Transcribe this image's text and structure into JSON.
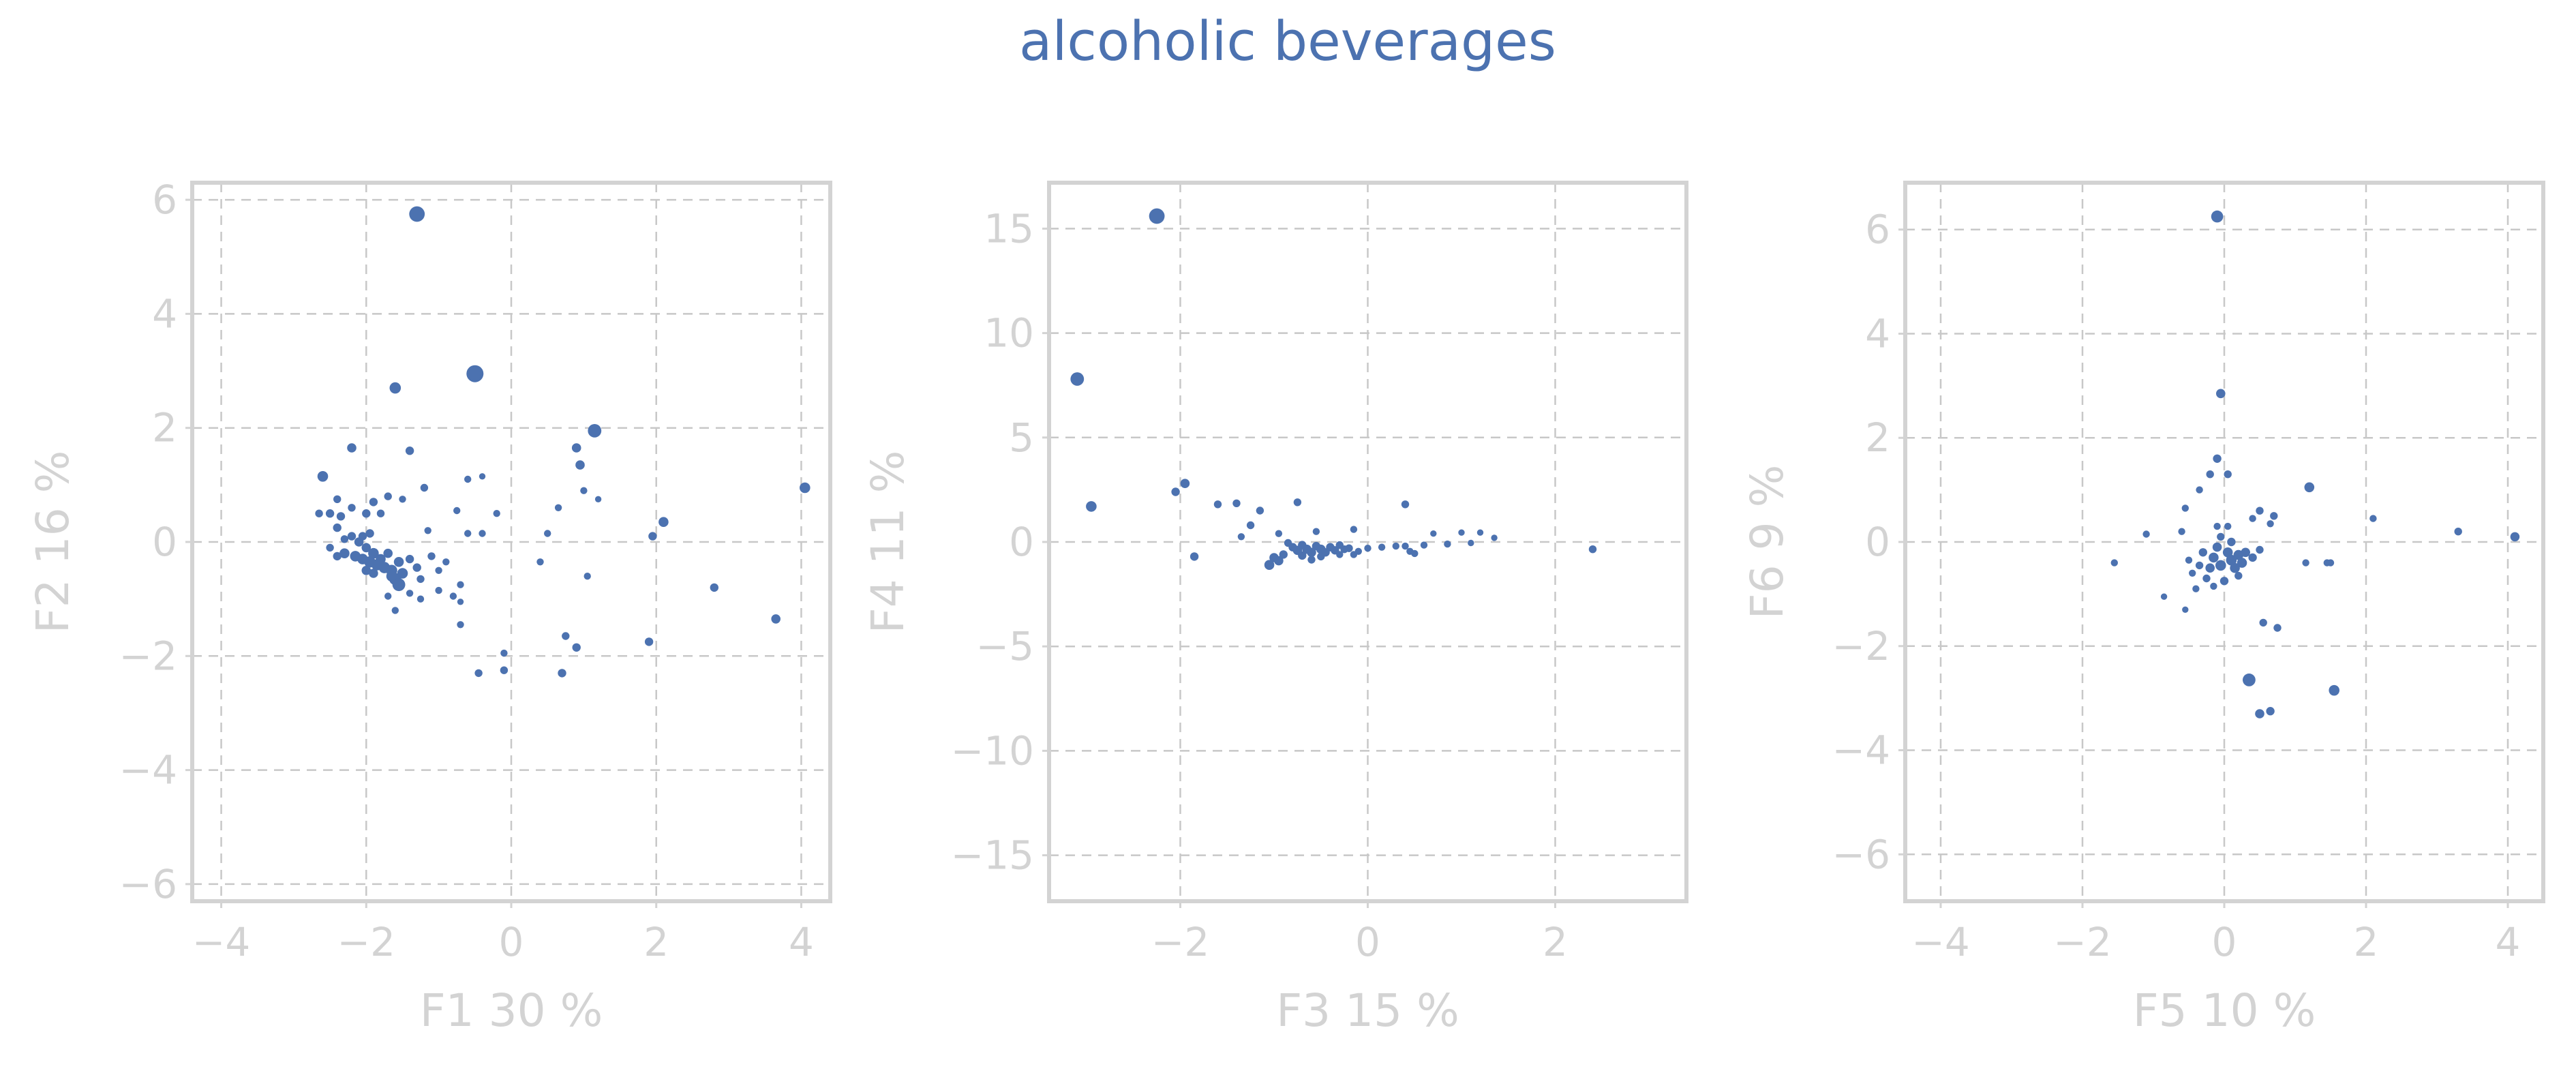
{
  "title": "alcoholic beverages",
  "colors": {
    "points": "#4c72b0",
    "title": "#4c72b0",
    "axis_text": "#d3d3d3",
    "frame": "#d3d3d3",
    "grid": "#c8c8c8"
  },
  "chart_data": [
    {
      "type": "scatter",
      "xlabel": "F1 30 %",
      "ylabel": "F2 16 %",
      "xlim": [
        -4.4,
        4.4
      ],
      "ylim": [
        -6.3,
        6.3
      ],
      "xticks": [
        -4,
        -2,
        0,
        2,
        4
      ],
      "yticks": [
        -6,
        -4,
        -2,
        0,
        2,
        4,
        6
      ],
      "xtick_labels": [
        "−4",
        "−2",
        "0",
        "2",
        "4"
      ],
      "ytick_labels": [
        "−6",
        "−4",
        "−2",
        "0",
        "2",
        "4",
        "6"
      ],
      "grid": true,
      "points": [
        {
          "x": -1.3,
          "y": 5.75,
          "s": 2.2
        },
        {
          "x": -0.5,
          "y": 2.95,
          "s": 2.4
        },
        {
          "x": -1.6,
          "y": 2.7,
          "s": 1.6
        },
        {
          "x": 1.15,
          "y": 1.95,
          "s": 1.9
        },
        {
          "x": -2.2,
          "y": 1.65,
          "s": 1.3
        },
        {
          "x": -1.4,
          "y": 1.6,
          "s": 1.2
        },
        {
          "x": 0.9,
          "y": 1.65,
          "s": 1.3
        },
        {
          "x": 0.95,
          "y": 1.35,
          "s": 1.3
        },
        {
          "x": -2.6,
          "y": 1.15,
          "s": 1.5
        },
        {
          "x": -0.6,
          "y": 1.1,
          "s": 1.0
        },
        {
          "x": -0.4,
          "y": 1.15,
          "s": 0.9
        },
        {
          "x": -1.2,
          "y": 0.95,
          "s": 1.1
        },
        {
          "x": 1.0,
          "y": 0.9,
          "s": 1.0
        },
        {
          "x": 1.2,
          "y": 0.75,
          "s": 0.9
        },
        {
          "x": 0.65,
          "y": 0.6,
          "s": 1.0
        },
        {
          "x": -2.4,
          "y": 0.75,
          "s": 1.1
        },
        {
          "x": -2.2,
          "y": 0.6,
          "s": 1.1
        },
        {
          "x": -1.9,
          "y": 0.7,
          "s": 1.2
        },
        {
          "x": -1.7,
          "y": 0.8,
          "s": 1.1
        },
        {
          "x": -1.5,
          "y": 0.75,
          "s": 1.0
        },
        {
          "x": -2.5,
          "y": 0.5,
          "s": 1.2
        },
        {
          "x": -2.65,
          "y": 0.5,
          "s": 1.1
        },
        {
          "x": -2.35,
          "y": 0.45,
          "s": 1.2
        },
        {
          "x": -2.0,
          "y": 0.5,
          "s": 1.2
        },
        {
          "x": -1.8,
          "y": 0.5,
          "s": 1.1
        },
        {
          "x": -0.2,
          "y": 0.5,
          "s": 1.0
        },
        {
          "x": -0.75,
          "y": 0.55,
          "s": 1.0
        },
        {
          "x": -1.15,
          "y": 0.2,
          "s": 1.0
        },
        {
          "x": -0.6,
          "y": 0.15,
          "s": 1.0
        },
        {
          "x": -0.4,
          "y": 0.15,
          "s": 1.0
        },
        {
          "x": 0.5,
          "y": 0.15,
          "s": 1.0
        },
        {
          "x": 1.95,
          "y": 0.1,
          "s": 1.2
        },
        {
          "x": 2.1,
          "y": 0.35,
          "s": 1.4
        },
        {
          "x": 4.05,
          "y": 0.95,
          "s": 1.5
        },
        {
          "x": -2.4,
          "y": 0.25,
          "s": 1.2
        },
        {
          "x": -2.2,
          "y": 0.1,
          "s": 1.2
        },
        {
          "x": -2.1,
          "y": 0.0,
          "s": 1.3
        },
        {
          "x": -2.0,
          "y": -0.1,
          "s": 1.3
        },
        {
          "x": -1.9,
          "y": -0.2,
          "s": 1.5
        },
        {
          "x": -2.3,
          "y": -0.2,
          "s": 1.4
        },
        {
          "x": -2.15,
          "y": -0.25,
          "s": 1.5
        },
        {
          "x": -2.05,
          "y": -0.3,
          "s": 1.5
        },
        {
          "x": -1.95,
          "y": -0.35,
          "s": 1.6
        },
        {
          "x": -1.85,
          "y": -0.4,
          "s": 1.6
        },
        {
          "x": -1.75,
          "y": -0.45,
          "s": 1.6
        },
        {
          "x": -1.65,
          "y": -0.5,
          "s": 1.6
        },
        {
          "x": -1.8,
          "y": -0.3,
          "s": 1.4
        },
        {
          "x": -1.7,
          "y": -0.2,
          "s": 1.3
        },
        {
          "x": -1.55,
          "y": -0.35,
          "s": 1.4
        },
        {
          "x": -1.5,
          "y": -0.55,
          "s": 1.5
        },
        {
          "x": -1.6,
          "y": -0.65,
          "s": 1.7
        },
        {
          "x": -1.55,
          "y": -0.75,
          "s": 1.8
        },
        {
          "x": -1.65,
          "y": -0.6,
          "s": 1.5
        },
        {
          "x": -1.9,
          "y": -0.55,
          "s": 1.3
        },
        {
          "x": -2.0,
          "y": -0.5,
          "s": 1.3
        },
        {
          "x": -1.4,
          "y": -0.3,
          "s": 1.2
        },
        {
          "x": -1.3,
          "y": -0.45,
          "s": 1.2
        },
        {
          "x": -1.25,
          "y": -0.65,
          "s": 1.1
        },
        {
          "x": -1.1,
          "y": -0.25,
          "s": 1.1
        },
        {
          "x": -1.0,
          "y": -0.5,
          "s": 1.0
        },
        {
          "x": -0.9,
          "y": -0.35,
          "s": 1.0
        },
        {
          "x": -1.4,
          "y": -0.9,
          "s": 1.0
        },
        {
          "x": -1.25,
          "y": -1.0,
          "s": 1.0
        },
        {
          "x": -1.0,
          "y": -0.85,
          "s": 1.0
        },
        {
          "x": -0.8,
          "y": -0.95,
          "s": 1.0
        },
        {
          "x": -0.7,
          "y": -0.75,
          "s": 1.0
        },
        {
          "x": -0.7,
          "y": -1.05,
          "s": 0.9
        },
        {
          "x": -1.6,
          "y": -1.2,
          "s": 1.0
        },
        {
          "x": -1.7,
          "y": -0.95,
          "s": 1.0
        },
        {
          "x": -0.7,
          "y": -1.45,
          "s": 1.0
        },
        {
          "x": -2.5,
          "y": -0.1,
          "s": 1.1
        },
        {
          "x": -2.3,
          "y": 0.05,
          "s": 1.1
        },
        {
          "x": -2.4,
          "y": -0.25,
          "s": 1.2
        },
        {
          "x": 0.4,
          "y": -0.35,
          "s": 1.0
        },
        {
          "x": 1.05,
          "y": -0.6,
          "s": 1.0
        },
        {
          "x": 2.8,
          "y": -0.8,
          "s": 1.2
        },
        {
          "x": 3.65,
          "y": -1.35,
          "s": 1.3
        },
        {
          "x": 1.9,
          "y": -1.75,
          "s": 1.2
        },
        {
          "x": 0.75,
          "y": -1.65,
          "s": 1.1
        },
        {
          "x": 0.9,
          "y": -1.85,
          "s": 1.2
        },
        {
          "x": -0.1,
          "y": -1.95,
          "s": 1.0
        },
        {
          "x": -0.1,
          "y": -2.25,
          "s": 1.1
        },
        {
          "x": -0.45,
          "y": -2.3,
          "s": 1.1
        },
        {
          "x": 0.7,
          "y": -2.3,
          "s": 1.2
        },
        {
          "x": -1.95,
          "y": 0.15,
          "s": 1.2
        },
        {
          "x": -2.05,
          "y": 0.1,
          "s": 1.2
        }
      ]
    },
    {
      "type": "scatter",
      "xlabel": "F3 15 %",
      "ylabel": "F4 11 %",
      "xlim": [
        -3.4,
        3.4
      ],
      "ylim": [
        -17.2,
        17.2
      ],
      "xticks": [
        -2,
        0,
        2
      ],
      "yticks": [
        -15,
        -10,
        -5,
        0,
        5,
        10,
        15
      ],
      "xtick_labels": [
        "−2",
        "0",
        "2"
      ],
      "ytick_labels": [
        "−15",
        "−10",
        "−5",
        "0",
        "5",
        "10",
        "15"
      ],
      "grid": true,
      "points": [
        {
          "x": -2.25,
          "y": 15.6,
          "s": 2.2
        },
        {
          "x": -3.1,
          "y": 7.8,
          "s": 1.9
        },
        {
          "x": -2.95,
          "y": 1.7,
          "s": 1.5
        },
        {
          "x": -1.95,
          "y": 2.8,
          "s": 1.3
        },
        {
          "x": -2.05,
          "y": 2.4,
          "s": 1.2
        },
        {
          "x": -1.6,
          "y": 1.8,
          "s": 1.1
        },
        {
          "x": -1.4,
          "y": 1.85,
          "s": 1.1
        },
        {
          "x": -1.15,
          "y": 1.5,
          "s": 1.1
        },
        {
          "x": -0.75,
          "y": 1.9,
          "s": 1.1
        },
        {
          "x": 0.4,
          "y": 1.8,
          "s": 1.1
        },
        {
          "x": -1.25,
          "y": 0.8,
          "s": 1.1
        },
        {
          "x": -1.35,
          "y": 0.25,
          "s": 1.0
        },
        {
          "x": -1.85,
          "y": -0.7,
          "s": 1.2
        },
        {
          "x": -0.95,
          "y": 0.4,
          "s": 1.0
        },
        {
          "x": -0.15,
          "y": 0.6,
          "s": 1.0
        },
        {
          "x": -0.55,
          "y": 0.5,
          "s": 1.0
        },
        {
          "x": 0.7,
          "y": 0.4,
          "s": 0.9
        },
        {
          "x": 1.0,
          "y": 0.45,
          "s": 0.9
        },
        {
          "x": 1.2,
          "y": 0.45,
          "s": 0.9
        },
        {
          "x": 1.35,
          "y": 0.2,
          "s": 0.9
        },
        {
          "x": -0.85,
          "y": -0.05,
          "s": 1.1
        },
        {
          "x": -0.8,
          "y": -0.25,
          "s": 1.2
        },
        {
          "x": -0.75,
          "y": -0.4,
          "s": 1.3
        },
        {
          "x": -0.7,
          "y": -0.15,
          "s": 1.2
        },
        {
          "x": -0.65,
          "y": -0.35,
          "s": 1.3
        },
        {
          "x": -0.6,
          "y": -0.5,
          "s": 1.3
        },
        {
          "x": -0.55,
          "y": -0.2,
          "s": 1.2
        },
        {
          "x": -0.5,
          "y": -0.35,
          "s": 1.3
        },
        {
          "x": -0.45,
          "y": -0.5,
          "s": 1.2
        },
        {
          "x": -0.4,
          "y": -0.25,
          "s": 1.2
        },
        {
          "x": -0.35,
          "y": -0.4,
          "s": 1.2
        },
        {
          "x": -0.3,
          "y": -0.15,
          "s": 1.1
        },
        {
          "x": -0.25,
          "y": -0.35,
          "s": 1.1
        },
        {
          "x": -0.9,
          "y": -0.6,
          "s": 1.2
        },
        {
          "x": -1.0,
          "y": -0.75,
          "s": 1.3
        },
        {
          "x": -1.05,
          "y": -1.1,
          "s": 1.4
        },
        {
          "x": -0.95,
          "y": -0.9,
          "s": 1.3
        },
        {
          "x": -0.7,
          "y": -0.65,
          "s": 1.2
        },
        {
          "x": -0.6,
          "y": -0.85,
          "s": 1.1
        },
        {
          "x": -0.5,
          "y": -0.7,
          "s": 1.1
        },
        {
          "x": -0.2,
          "y": -0.3,
          "s": 1.1
        },
        {
          "x": -0.1,
          "y": -0.45,
          "s": 1.0
        },
        {
          "x": 0.0,
          "y": -0.3,
          "s": 1.0
        },
        {
          "x": 0.15,
          "y": -0.25,
          "s": 1.0
        },
        {
          "x": 0.3,
          "y": -0.2,
          "s": 1.0
        },
        {
          "x": 0.45,
          "y": -0.45,
          "s": 1.0
        },
        {
          "x": 0.4,
          "y": -0.2,
          "s": 1.0
        },
        {
          "x": 0.6,
          "y": -0.15,
          "s": 1.0
        },
        {
          "x": 0.85,
          "y": -0.1,
          "s": 1.0
        },
        {
          "x": 1.1,
          "y": -0.05,
          "s": 0.9
        },
        {
          "x": 2.4,
          "y": -0.35,
          "s": 1.1
        },
        {
          "x": -0.3,
          "y": -0.6,
          "s": 1.0
        },
        {
          "x": -0.15,
          "y": -0.6,
          "s": 1.0
        },
        {
          "x": 0.5,
          "y": -0.55,
          "s": 1.0
        }
      ]
    },
    {
      "type": "scatter",
      "xlabel": "F5 10 %",
      "ylabel": "F6 9 %",
      "xlim": [
        -4.5,
        4.5
      ],
      "ylim": [
        -6.9,
        6.9
      ],
      "xticks": [
        -4,
        -2,
        0,
        2,
        4
      ],
      "yticks": [
        -6,
        -4,
        -2,
        0,
        2,
        4,
        6
      ],
      "xtick_labels": [
        "−4",
        "−2",
        "0",
        "2",
        "4"
      ],
      "ytick_labels": [
        "−6",
        "−4",
        "−2",
        "0",
        "2",
        "4",
        "6"
      ],
      "grid": true,
      "points": [
        {
          "x": -0.1,
          "y": 6.25,
          "s": 1.7
        },
        {
          "x": -0.05,
          "y": 2.85,
          "s": 1.3
        },
        {
          "x": -0.1,
          "y": 1.6,
          "s": 1.2
        },
        {
          "x": -0.2,
          "y": 1.3,
          "s": 1.1
        },
        {
          "x": 0.05,
          "y": 1.3,
          "s": 1.1
        },
        {
          "x": -0.35,
          "y": 1.0,
          "s": 1.0
        },
        {
          "x": 1.2,
          "y": 1.05,
          "s": 1.4
        },
        {
          "x": 2.1,
          "y": 0.45,
          "s": 1.0
        },
        {
          "x": 3.3,
          "y": 0.2,
          "s": 1.1
        },
        {
          "x": 4.1,
          "y": 0.1,
          "s": 1.3
        },
        {
          "x": -0.55,
          "y": 0.65,
          "s": 1.0
        },
        {
          "x": 0.5,
          "y": 0.6,
          "s": 1.1
        },
        {
          "x": 0.7,
          "y": 0.5,
          "s": 1.1
        },
        {
          "x": 0.65,
          "y": 0.35,
          "s": 1.0
        },
        {
          "x": 0.4,
          "y": 0.45,
          "s": 1.0
        },
        {
          "x": -0.6,
          "y": 0.2,
          "s": 1.0
        },
        {
          "x": -1.1,
          "y": 0.15,
          "s": 1.0
        },
        {
          "x": -0.1,
          "y": 0.3,
          "s": 1.0
        },
        {
          "x": 0.05,
          "y": 0.3,
          "s": 1.0
        },
        {
          "x": -0.05,
          "y": 0.1,
          "s": 1.1
        },
        {
          "x": 0.1,
          "y": 0.0,
          "s": 1.2
        },
        {
          "x": -0.1,
          "y": -0.1,
          "s": 1.3
        },
        {
          "x": 0.05,
          "y": -0.2,
          "s": 1.4
        },
        {
          "x": 0.2,
          "y": -0.25,
          "s": 1.4
        },
        {
          "x": -0.15,
          "y": -0.3,
          "s": 1.4
        },
        {
          "x": 0.1,
          "y": -0.35,
          "s": 1.5
        },
        {
          "x": 0.25,
          "y": -0.4,
          "s": 1.4
        },
        {
          "x": -0.05,
          "y": -0.45,
          "s": 1.5
        },
        {
          "x": 0.15,
          "y": -0.5,
          "s": 1.4
        },
        {
          "x": -0.2,
          "y": -0.5,
          "s": 1.3
        },
        {
          "x": 0.3,
          "y": -0.2,
          "s": 1.3
        },
        {
          "x": 0.4,
          "y": -0.3,
          "s": 1.2
        },
        {
          "x": 0.5,
          "y": -0.15,
          "s": 1.1
        },
        {
          "x": -0.3,
          "y": -0.2,
          "s": 1.2
        },
        {
          "x": -0.35,
          "y": -0.45,
          "s": 1.1
        },
        {
          "x": -0.45,
          "y": -0.6,
          "s": 1.0
        },
        {
          "x": -0.25,
          "y": -0.7,
          "s": 1.1
        },
        {
          "x": 0.0,
          "y": -0.75,
          "s": 1.2
        },
        {
          "x": -0.5,
          "y": -0.35,
          "s": 1.0
        },
        {
          "x": 0.2,
          "y": -0.65,
          "s": 1.1
        },
        {
          "x": -0.15,
          "y": -0.85,
          "s": 1.0
        },
        {
          "x": -1.55,
          "y": -0.4,
          "s": 1.0
        },
        {
          "x": -0.85,
          "y": -1.05,
          "s": 0.9
        },
        {
          "x": -0.55,
          "y": -1.3,
          "s": 0.9
        },
        {
          "x": 1.15,
          "y": -0.4,
          "s": 1.0
        },
        {
          "x": 1.45,
          "y": -0.4,
          "s": 1.0
        },
        {
          "x": 1.5,
          "y": -0.4,
          "s": 1.0
        },
        {
          "x": 0.55,
          "y": -1.55,
          "s": 1.1
        },
        {
          "x": 0.75,
          "y": -1.65,
          "s": 1.1
        },
        {
          "x": 0.35,
          "y": -2.65,
          "s": 1.8
        },
        {
          "x": 1.55,
          "y": -2.85,
          "s": 1.5
        },
        {
          "x": 0.5,
          "y": -3.3,
          "s": 1.3
        },
        {
          "x": 0.65,
          "y": -3.25,
          "s": 1.2
        },
        {
          "x": -0.4,
          "y": -0.9,
          "s": 1.0
        }
      ]
    }
  ]
}
